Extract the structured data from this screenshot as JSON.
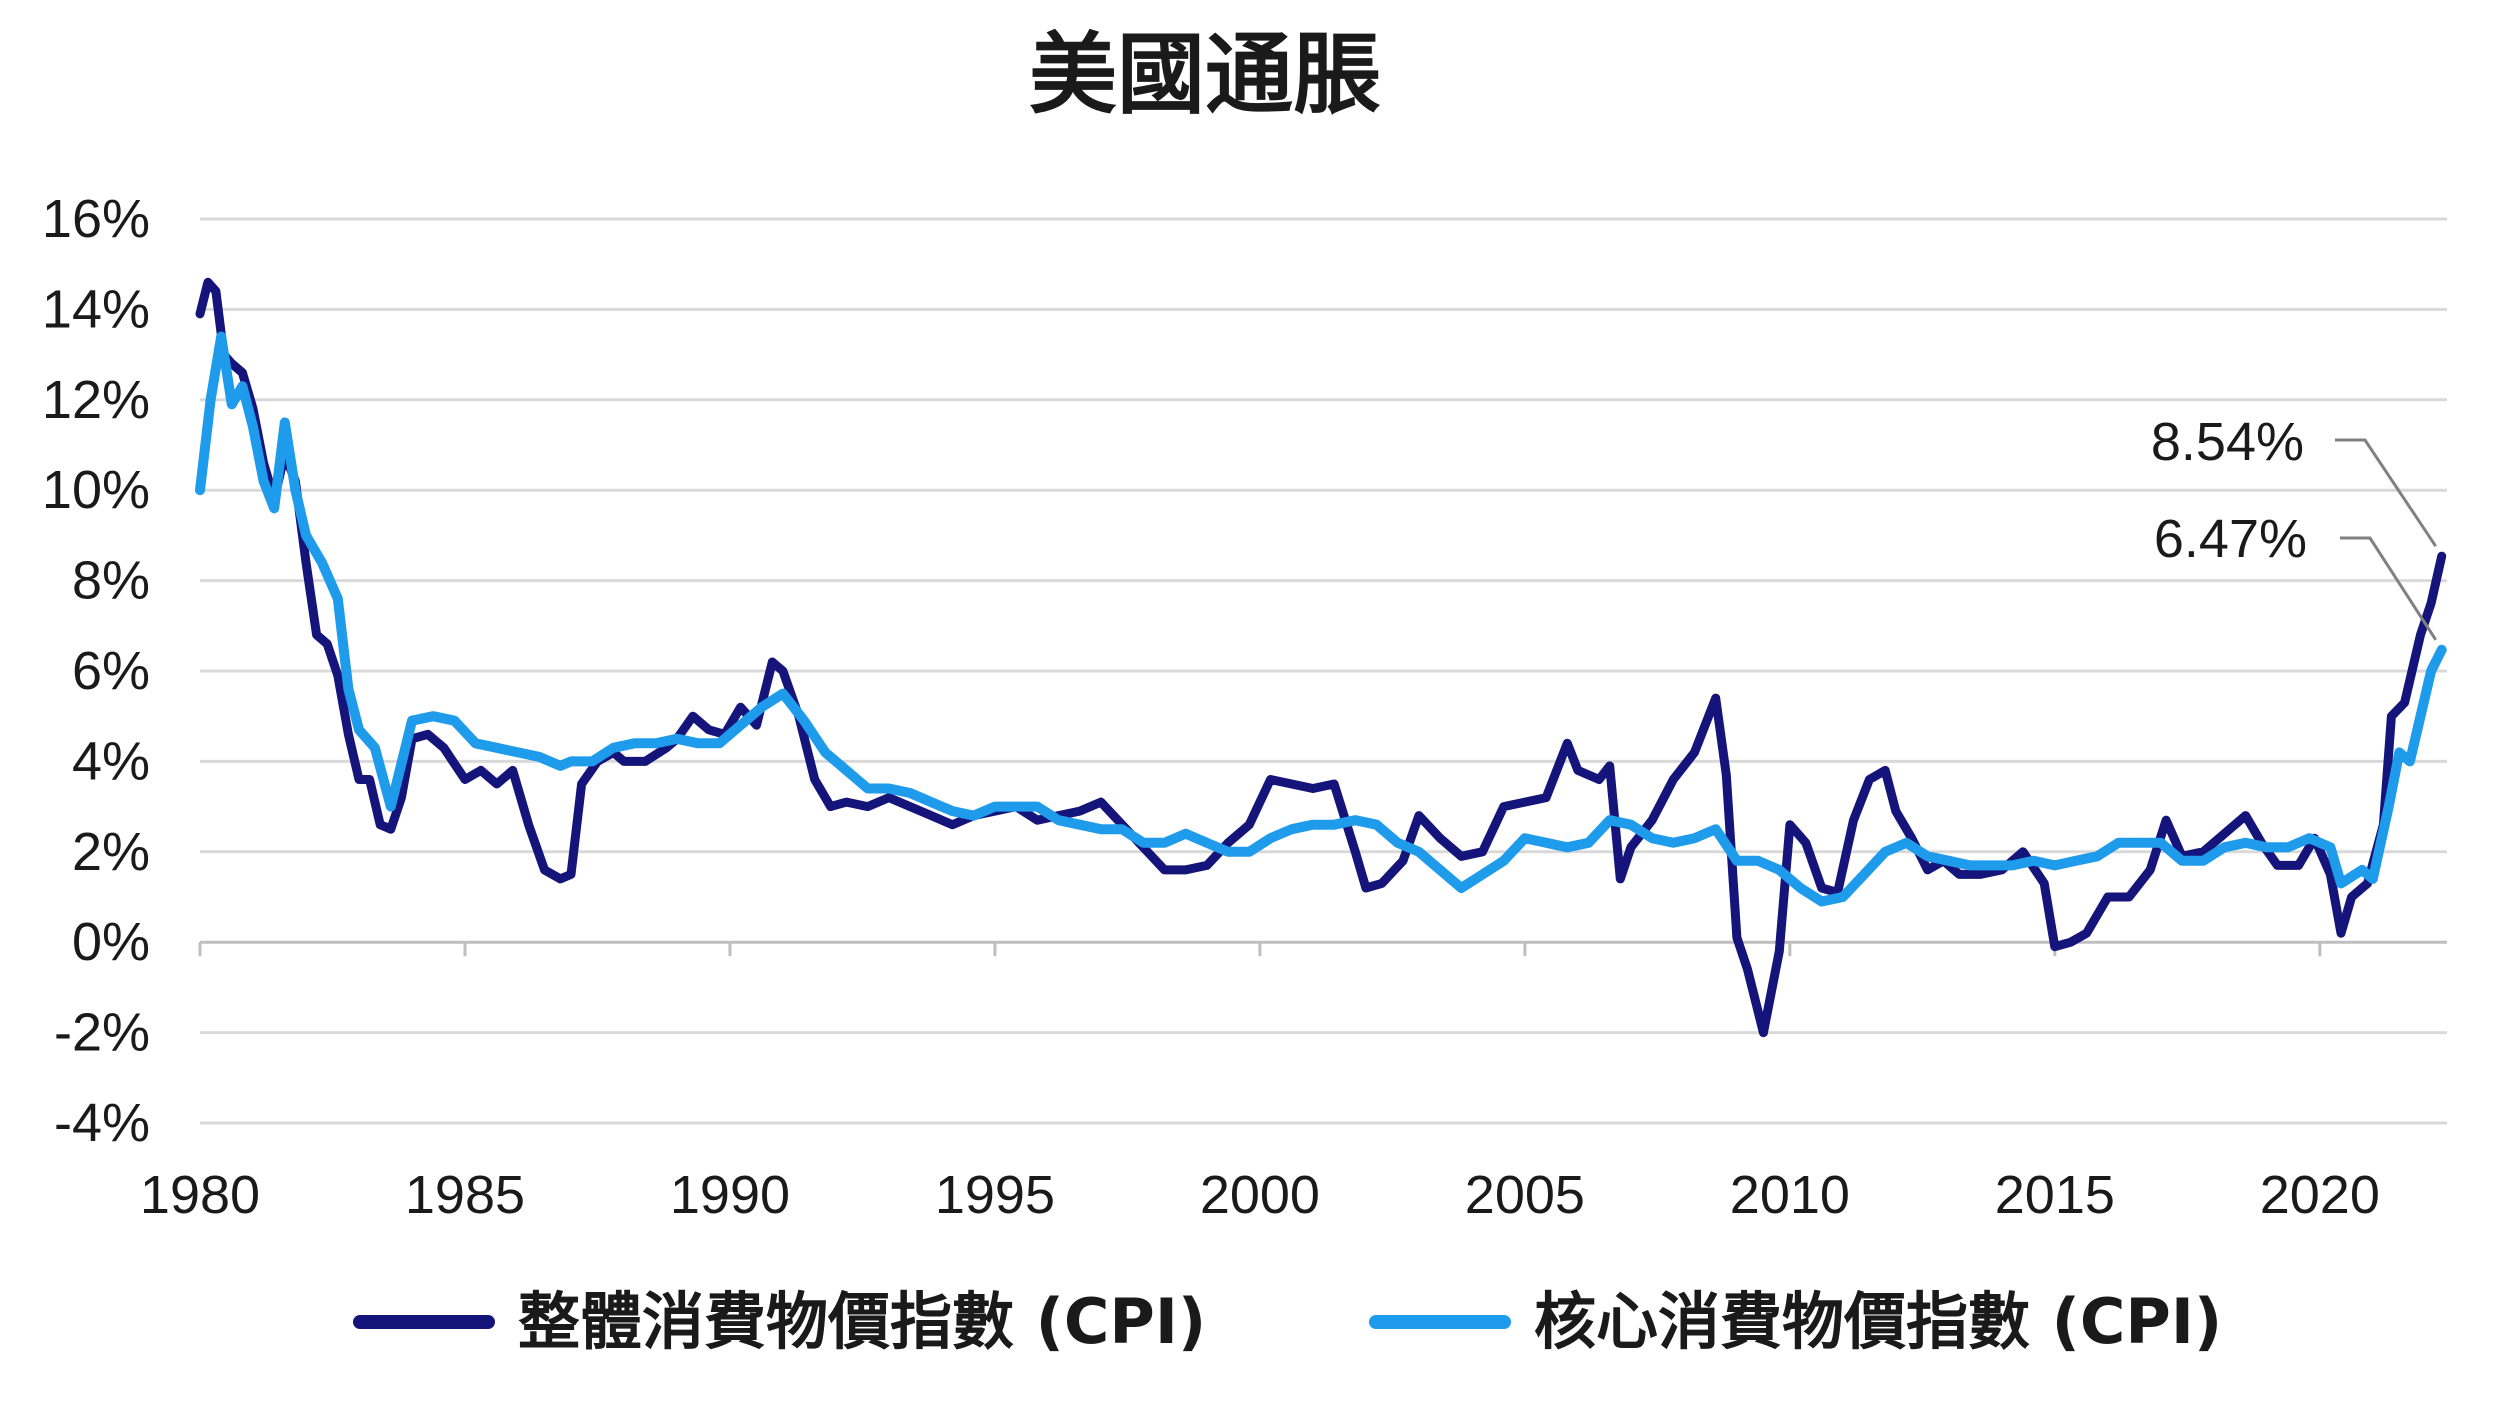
{
  "chart_data": {
    "type": "line",
    "title": "美國通脹",
    "xlabel": "",
    "ylabel": "",
    "x_ticks": [
      "1980",
      "1985",
      "1990",
      "1995",
      "2000",
      "2005",
      "2010",
      "2015",
      "2020"
    ],
    "y_ticks": [
      "16%",
      "14%",
      "12%",
      "10%",
      "8%",
      "6%",
      "4%",
      "2%",
      "0%",
      "-2%",
      "-4%"
    ],
    "xlim": [
      1980,
      2022.4
    ],
    "ylim": [
      -4,
      16
    ],
    "grid": true,
    "legend_position": "bottom",
    "series": [
      {
        "name": "整體消費物價指數 (CPI)",
        "color": "#14147a",
        "points": [
          [
            1980.0,
            13.9
          ],
          [
            1980.15,
            14.6
          ],
          [
            1980.3,
            14.4
          ],
          [
            1980.45,
            13.0
          ],
          [
            1980.6,
            12.8
          ],
          [
            1980.8,
            12.6
          ],
          [
            1981.0,
            11.8
          ],
          [
            1981.2,
            10.6
          ],
          [
            1981.4,
            9.8
          ],
          [
            1981.6,
            10.8
          ],
          [
            1981.8,
            10.2
          ],
          [
            1982.0,
            8.4
          ],
          [
            1982.2,
            6.8
          ],
          [
            1982.4,
            6.6
          ],
          [
            1982.6,
            5.9
          ],
          [
            1982.8,
            4.6
          ],
          [
            1983.0,
            3.6
          ],
          [
            1983.2,
            3.6
          ],
          [
            1983.4,
            2.6
          ],
          [
            1983.6,
            2.5
          ],
          [
            1983.8,
            3.2
          ],
          [
            1984.0,
            4.5
          ],
          [
            1984.3,
            4.6
          ],
          [
            1984.6,
            4.3
          ],
          [
            1985.0,
            3.6
          ],
          [
            1985.3,
            3.8
          ],
          [
            1985.6,
            3.5
          ],
          [
            1985.9,
            3.8
          ],
          [
            1986.2,
            2.6
          ],
          [
            1986.5,
            1.6
          ],
          [
            1986.8,
            1.4
          ],
          [
            1987.0,
            1.5
          ],
          [
            1987.2,
            3.5
          ],
          [
            1987.5,
            4.0
          ],
          [
            1987.8,
            4.2
          ],
          [
            1988.0,
            4.0
          ],
          [
            1988.4,
            4.0
          ],
          [
            1988.8,
            4.3
          ],
          [
            1989.0,
            4.5
          ],
          [
            1989.3,
            5.0
          ],
          [
            1989.6,
            4.7
          ],
          [
            1989.9,
            4.6
          ],
          [
            1990.2,
            5.2
          ],
          [
            1990.5,
            4.8
          ],
          [
            1990.8,
            6.2
          ],
          [
            1991.0,
            6.0
          ],
          [
            1991.3,
            5.0
          ],
          [
            1991.6,
            3.6
          ],
          [
            1991.9,
            3.0
          ],
          [
            1992.2,
            3.1
          ],
          [
            1992.6,
            3.0
          ],
          [
            1993.0,
            3.2
          ],
          [
            1993.4,
            3.0
          ],
          [
            1993.8,
            2.8
          ],
          [
            1994.2,
            2.6
          ],
          [
            1994.6,
            2.8
          ],
          [
            1995.0,
            2.9
          ],
          [
            1995.4,
            3.0
          ],
          [
            1995.8,
            2.7
          ],
          [
            1996.2,
            2.8
          ],
          [
            1996.6,
            2.9
          ],
          [
            1997.0,
            3.1
          ],
          [
            1997.4,
            2.6
          ],
          [
            1997.8,
            2.1
          ],
          [
            1998.2,
            1.6
          ],
          [
            1998.6,
            1.6
          ],
          [
            1999.0,
            1.7
          ],
          [
            1999.4,
            2.2
          ],
          [
            1999.8,
            2.6
          ],
          [
            2000.2,
            3.6
          ],
          [
            2000.6,
            3.5
          ],
          [
            2001.0,
            3.4
          ],
          [
            2001.4,
            3.5
          ],
          [
            2001.8,
            2.0
          ],
          [
            2002.0,
            1.2
          ],
          [
            2002.3,
            1.3
          ],
          [
            2002.7,
            1.8
          ],
          [
            2003.0,
            2.8
          ],
          [
            2003.4,
            2.3
          ],
          [
            2003.8,
            1.9
          ],
          [
            2004.2,
            2.0
          ],
          [
            2004.6,
            3.0
          ],
          [
            2005.0,
            3.1
          ],
          [
            2005.4,
            3.2
          ],
          [
            2005.8,
            4.4
          ],
          [
            2006.0,
            3.8
          ],
          [
            2006.4,
            3.6
          ],
          [
            2006.6,
            3.9
          ],
          [
            2006.8,
            1.4
          ],
          [
            2007.0,
            2.1
          ],
          [
            2007.4,
            2.7
          ],
          [
            2007.8,
            3.6
          ],
          [
            2008.2,
            4.2
          ],
          [
            2008.6,
            5.4
          ],
          [
            2008.8,
            3.7
          ],
          [
            2009.0,
            0.1
          ],
          [
            2009.2,
            -0.6
          ],
          [
            2009.5,
            -2.0
          ],
          [
            2009.8,
            -0.2
          ],
          [
            2010.0,
            2.6
          ],
          [
            2010.3,
            2.2
          ],
          [
            2010.6,
            1.2
          ],
          [
            2010.9,
            1.1
          ],
          [
            2011.2,
            2.7
          ],
          [
            2011.5,
            3.6
          ],
          [
            2011.8,
            3.8
          ],
          [
            2012.0,
            2.9
          ],
          [
            2012.3,
            2.3
          ],
          [
            2012.6,
            1.6
          ],
          [
            2012.9,
            1.8
          ],
          [
            2013.2,
            1.5
          ],
          [
            2013.6,
            1.5
          ],
          [
            2014.0,
            1.6
          ],
          [
            2014.4,
            2.0
          ],
          [
            2014.8,
            1.3
          ],
          [
            2015.0,
            -0.1
          ],
          [
            2015.3,
            0.0
          ],
          [
            2015.6,
            0.2
          ],
          [
            2016.0,
            1.0
          ],
          [
            2016.4,
            1.0
          ],
          [
            2016.8,
            1.6
          ],
          [
            2017.1,
            2.7
          ],
          [
            2017.4,
            1.9
          ],
          [
            2017.8,
            2.0
          ],
          [
            2018.2,
            2.4
          ],
          [
            2018.6,
            2.8
          ],
          [
            2018.9,
            2.2
          ],
          [
            2019.2,
            1.7
          ],
          [
            2019.6,
            1.7
          ],
          [
            2019.9,
            2.3
          ],
          [
            2020.2,
            1.5
          ],
          [
            2020.4,
            0.2
          ],
          [
            2020.6,
            1.0
          ],
          [
            2020.9,
            1.3
          ],
          [
            2021.2,
            2.6
          ],
          [
            2021.35,
            5.0
          ],
          [
            2021.6,
            5.3
          ],
          [
            2021.9,
            6.8
          ],
          [
            2022.1,
            7.5
          ],
          [
            2022.3,
            8.54
          ]
        ]
      },
      {
        "name": "核心消費物價指數 (CPI)",
        "color": "#1e9bea",
        "points": [
          [
            1980.0,
            10.0
          ],
          [
            1980.2,
            12.0
          ],
          [
            1980.4,
            13.4
          ],
          [
            1980.6,
            11.9
          ],
          [
            1980.8,
            12.3
          ],
          [
            1981.0,
            11.4
          ],
          [
            1981.2,
            10.2
          ],
          [
            1981.4,
            9.6
          ],
          [
            1981.6,
            11.5
          ],
          [
            1981.8,
            10.0
          ],
          [
            1982.0,
            9.0
          ],
          [
            1982.3,
            8.4
          ],
          [
            1982.6,
            7.6
          ],
          [
            1982.8,
            5.6
          ],
          [
            1983.0,
            4.7
          ],
          [
            1983.3,
            4.3
          ],
          [
            1983.6,
            3.0
          ],
          [
            1984.0,
            4.9
          ],
          [
            1984.4,
            5.0
          ],
          [
            1984.8,
            4.9
          ],
          [
            1985.2,
            4.4
          ],
          [
            1985.6,
            4.3
          ],
          [
            1986.0,
            4.2
          ],
          [
            1986.4,
            4.1
          ],
          [
            1986.8,
            3.9
          ],
          [
            1987.0,
            4.0
          ],
          [
            1987.4,
            4.0
          ],
          [
            1987.8,
            4.3
          ],
          [
            1988.2,
            4.4
          ],
          [
            1988.6,
            4.4
          ],
          [
            1989.0,
            4.5
          ],
          [
            1989.4,
            4.4
          ],
          [
            1989.8,
            4.4
          ],
          [
            1990.2,
            4.8
          ],
          [
            1990.6,
            5.2
          ],
          [
            1991.0,
            5.5
          ],
          [
            1991.4,
            4.9
          ],
          [
            1991.8,
            4.2
          ],
          [
            1992.2,
            3.8
          ],
          [
            1992.6,
            3.4
          ],
          [
            1993.0,
            3.4
          ],
          [
            1993.4,
            3.3
          ],
          [
            1993.8,
            3.1
          ],
          [
            1994.2,
            2.9
          ],
          [
            1994.6,
            2.8
          ],
          [
            1995.0,
            3.0
          ],
          [
            1995.4,
            3.0
          ],
          [
            1995.8,
            3.0
          ],
          [
            1996.2,
            2.7
          ],
          [
            1996.6,
            2.6
          ],
          [
            1997.0,
            2.5
          ],
          [
            1997.4,
            2.5
          ],
          [
            1997.8,
            2.2
          ],
          [
            1998.2,
            2.2
          ],
          [
            1998.6,
            2.4
          ],
          [
            1999.0,
            2.2
          ],
          [
            1999.4,
            2.0
          ],
          [
            1999.8,
            2.0
          ],
          [
            2000.2,
            2.3
          ],
          [
            2000.6,
            2.5
          ],
          [
            2001.0,
            2.6
          ],
          [
            2001.4,
            2.6
          ],
          [
            2001.8,
            2.7
          ],
          [
            2002.2,
            2.6
          ],
          [
            2002.6,
            2.2
          ],
          [
            2003.0,
            2.0
          ],
          [
            2003.4,
            1.6
          ],
          [
            2003.8,
            1.2
          ],
          [
            2004.2,
            1.5
          ],
          [
            2004.6,
            1.8
          ],
          [
            2005.0,
            2.3
          ],
          [
            2005.4,
            2.2
          ],
          [
            2005.8,
            2.1
          ],
          [
            2006.2,
            2.2
          ],
          [
            2006.6,
            2.7
          ],
          [
            2007.0,
            2.6
          ],
          [
            2007.4,
            2.3
          ],
          [
            2007.8,
            2.2
          ],
          [
            2008.2,
            2.3
          ],
          [
            2008.6,
            2.5
          ],
          [
            2009.0,
            1.8
          ],
          [
            2009.4,
            1.8
          ],
          [
            2009.8,
            1.6
          ],
          [
            2010.2,
            1.2
          ],
          [
            2010.6,
            0.9
          ],
          [
            2011.0,
            1.0
          ],
          [
            2011.4,
            1.5
          ],
          [
            2011.8,
            2.0
          ],
          [
            2012.2,
            2.2
          ],
          [
            2012.6,
            1.9
          ],
          [
            2013.0,
            1.8
          ],
          [
            2013.4,
            1.7
          ],
          [
            2013.8,
            1.7
          ],
          [
            2014.2,
            1.7
          ],
          [
            2014.6,
            1.8
          ],
          [
            2015.0,
            1.7
          ],
          [
            2015.4,
            1.8
          ],
          [
            2015.8,
            1.9
          ],
          [
            2016.2,
            2.2
          ],
          [
            2016.6,
            2.2
          ],
          [
            2017.0,
            2.2
          ],
          [
            2017.4,
            1.8
          ],
          [
            2017.8,
            1.8
          ],
          [
            2018.2,
            2.1
          ],
          [
            2018.6,
            2.2
          ],
          [
            2019.0,
            2.1
          ],
          [
            2019.4,
            2.1
          ],
          [
            2019.8,
            2.3
          ],
          [
            2020.2,
            2.1
          ],
          [
            2020.4,
            1.3
          ],
          [
            2020.8,
            1.6
          ],
          [
            2021.0,
            1.4
          ],
          [
            2021.3,
            3.0
          ],
          [
            2021.5,
            4.2
          ],
          [
            2021.7,
            4.0
          ],
          [
            2021.9,
            5.0
          ],
          [
            2022.1,
            6.0
          ],
          [
            2022.3,
            6.47
          ]
        ]
      }
    ],
    "annotations": [
      {
        "text": "8.54%",
        "series": "整體消費物價指數 (CPI)",
        "x": 2022.3,
        "y": 8.54
      },
      {
        "text": "6.47%",
        "series": "核心消費物價指數 (CPI)",
        "x": 2022.3,
        "y": 6.47
      }
    ]
  }
}
